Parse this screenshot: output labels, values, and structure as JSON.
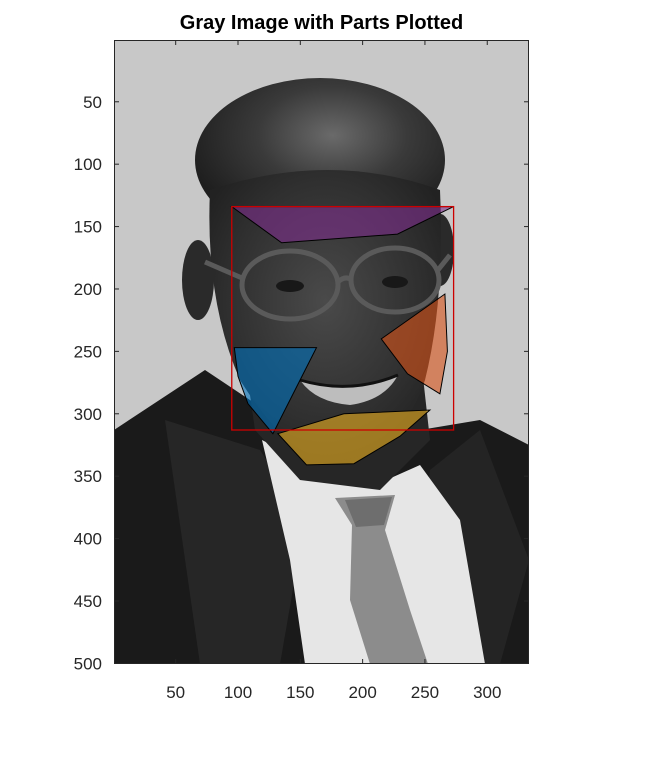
{
  "title": "Gray Image with Parts Plotted",
  "axes": {
    "x_ticks": [
      50,
      100,
      150,
      200,
      250,
      300
    ],
    "y_ticks": [
      50,
      100,
      150,
      200,
      250,
      300,
      350,
      400,
      450,
      500
    ],
    "x_range": [
      0.5,
      333.5
    ],
    "y_range": [
      0.5,
      500.5
    ],
    "y_direction": "reversed"
  },
  "overlays": {
    "bounding_box": {
      "x": [
        95,
        273
      ],
      "y": [
        134,
        313
      ],
      "color": "#cc0000"
    },
    "regions": [
      {
        "name": "forehead-region",
        "color": "#7e2f8e",
        "points": [
          [
            95,
            134
          ],
          [
            273,
            134
          ],
          [
            228,
            156
          ],
          [
            135,
            163
          ]
        ]
      },
      {
        "name": "right-cheek-region",
        "color": "#d95319",
        "points": [
          [
            266,
            204
          ],
          [
            268,
            250
          ],
          [
            262,
            284
          ],
          [
            236,
            268
          ],
          [
            215,
            240
          ]
        ]
      },
      {
        "name": "left-cheek-region",
        "color": "#0072bd",
        "points": [
          [
            97,
            247
          ],
          [
            163,
            247
          ],
          [
            128,
            316
          ],
          [
            108,
            292
          ],
          [
            100,
            270
          ]
        ]
      },
      {
        "name": "chin-region",
        "color": "#edb120",
        "points": [
          [
            132,
            316
          ],
          [
            185,
            300
          ],
          [
            254,
            297
          ],
          [
            230,
            318
          ],
          [
            193,
            340
          ],
          [
            155,
            341
          ]
        ]
      }
    ]
  }
}
